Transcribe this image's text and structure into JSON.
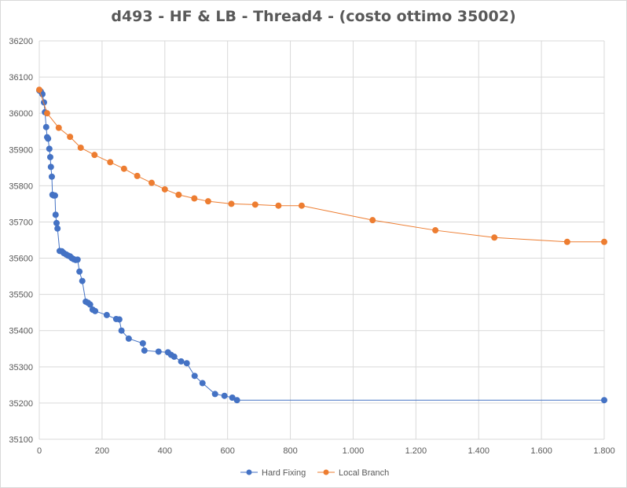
{
  "chart_data": {
    "type": "line",
    "title": "d493 - HF & LB - Thread4  - (costo ottimo 35002)",
    "xlabel": "",
    "ylabel": "",
    "xlim": [
      0,
      1800
    ],
    "ylim": [
      35100,
      36200
    ],
    "x_ticks": [
      0,
      200,
      400,
      600,
      800,
      1000,
      1200,
      1400,
      1600,
      1800
    ],
    "x_tick_labels": [
      "0",
      "200",
      "400",
      "600",
      "800",
      "1.000",
      "1.200",
      "1.400",
      "1.600",
      "1.800"
    ],
    "y_ticks": [
      35100,
      35200,
      35300,
      35400,
      35500,
      35600,
      35700,
      35800,
      35900,
      36000,
      36100,
      36200
    ],
    "y_tick_labels": [
      "35100",
      "35200",
      "35300",
      "35400",
      "35500",
      "35600",
      "35700",
      "35800",
      "35900",
      "36000",
      "36100",
      "36200"
    ],
    "grid": true,
    "legend_position": "bottom",
    "series": [
      {
        "name": "Hard Fixing",
        "color": "#4472c4",
        "points": [
          [
            0,
            36063
          ],
          [
            5,
            36060
          ],
          [
            10,
            36053
          ],
          [
            15,
            36030
          ],
          [
            18,
            36003
          ],
          [
            22,
            35962
          ],
          [
            25,
            35934
          ],
          [
            28,
            35930
          ],
          [
            32,
            35902
          ],
          [
            35,
            35879
          ],
          [
            37,
            35852
          ],
          [
            40,
            35825
          ],
          [
            42,
            35775
          ],
          [
            46,
            35773
          ],
          [
            50,
            35773
          ],
          [
            52,
            35720
          ],
          [
            55,
            35697
          ],
          [
            58,
            35682
          ],
          [
            65,
            35620
          ],
          [
            72,
            35619
          ],
          [
            78,
            35614
          ],
          [
            86,
            35610
          ],
          [
            92,
            35607
          ],
          [
            98,
            35605
          ],
          [
            104,
            35600
          ],
          [
            110,
            35597
          ],
          [
            116,
            35595
          ],
          [
            122,
            35596
          ],
          [
            128,
            35563
          ],
          [
            137,
            35537
          ],
          [
            148,
            35480
          ],
          [
            155,
            35477
          ],
          [
            162,
            35472
          ],
          [
            170,
            35458
          ],
          [
            178,
            35454
          ],
          [
            215,
            35443
          ],
          [
            245,
            35432
          ],
          [
            255,
            35431
          ],
          [
            262,
            35400
          ],
          [
            285,
            35378
          ],
          [
            330,
            35365
          ],
          [
            335,
            35345
          ],
          [
            380,
            35342
          ],
          [
            410,
            35340
          ],
          [
            420,
            35333
          ],
          [
            430,
            35328
          ],
          [
            452,
            35315
          ],
          [
            470,
            35310
          ],
          [
            495,
            35275
          ],
          [
            520,
            35255
          ],
          [
            560,
            35225
          ],
          [
            590,
            35220
          ],
          [
            615,
            35215
          ],
          [
            630,
            35208
          ],
          [
            1800,
            35208
          ]
        ]
      },
      {
        "name": "Local Branch",
        "color": "#ed7d31",
        "points": [
          [
            0,
            36065
          ],
          [
            25,
            36000
          ],
          [
            62,
            35960
          ],
          [
            98,
            35935
          ],
          [
            132,
            35905
          ],
          [
            176,
            35885
          ],
          [
            226,
            35865
          ],
          [
            270,
            35847
          ],
          [
            312,
            35827
          ],
          [
            358,
            35808
          ],
          [
            400,
            35790
          ],
          [
            444,
            35775
          ],
          [
            494,
            35765
          ],
          [
            538,
            35757
          ],
          [
            612,
            35750
          ],
          [
            688,
            35748
          ],
          [
            762,
            35745
          ],
          [
            836,
            35745
          ],
          [
            1062,
            35705
          ],
          [
            1262,
            35677
          ],
          [
            1450,
            35657
          ],
          [
            1682,
            35645
          ],
          [
            1800,
            35645
          ]
        ]
      }
    ]
  }
}
